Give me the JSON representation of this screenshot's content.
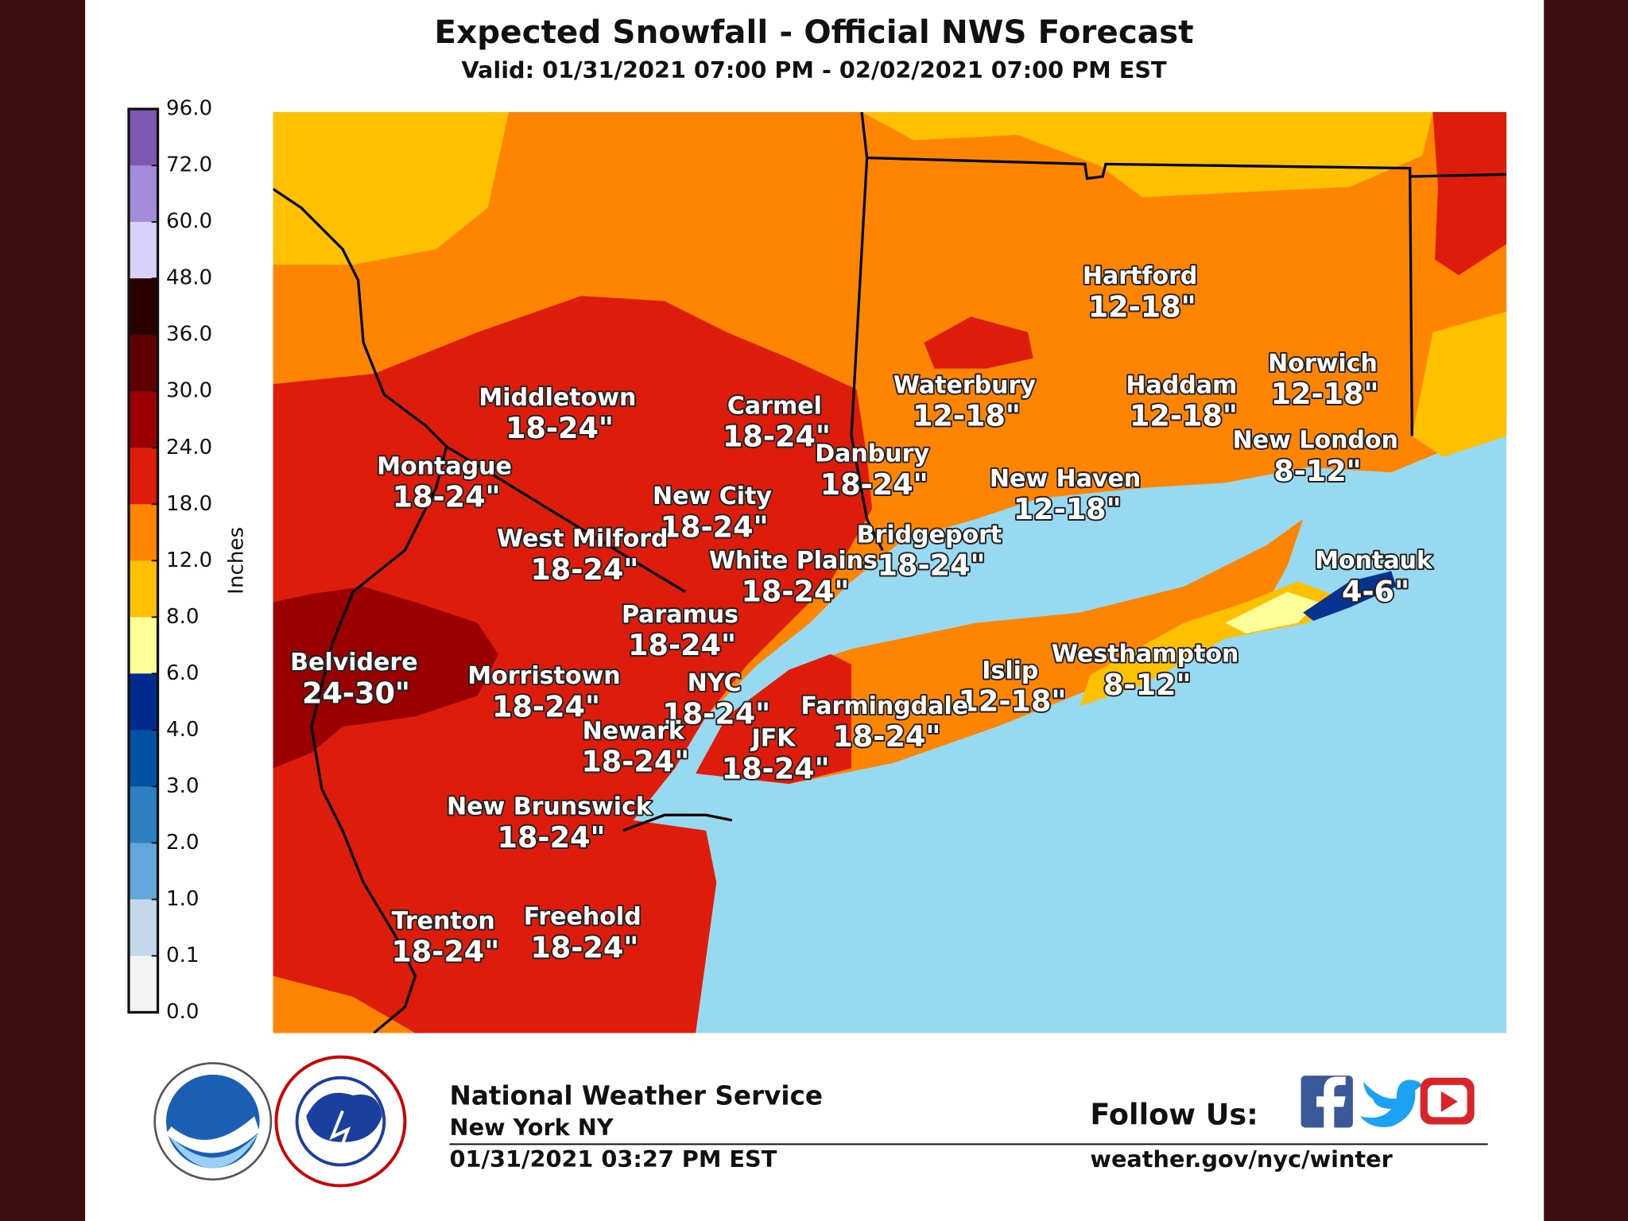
{
  "header": {
    "title": "Expected Snowfall - Official NWS Forecast",
    "subtitle": "Valid: 01/31/2021 07:00 PM - 02/02/2021 07:00 PM EST"
  },
  "colorbar": {
    "label": "Inches",
    "ticks": [
      "96.0",
      "72.0",
      "60.0",
      "48.0",
      "36.0",
      "30.0",
      "24.0",
      "18.0",
      "12.0",
      "8.0",
      "6.0",
      "4.0",
      "3.0",
      "2.0",
      "1.0",
      "0.1",
      "0.0"
    ]
  },
  "places": [
    {
      "name": "Hartford",
      "amount": "12-18\""
    },
    {
      "name": "Norwich",
      "amount": "12-18\""
    },
    {
      "name": "Middletown",
      "amount": "18-24\""
    },
    {
      "name": "Carmel",
      "amount": "18-24\""
    },
    {
      "name": "Waterbury",
      "amount": "12-18\""
    },
    {
      "name": "Haddam",
      "amount": "12-18\""
    },
    {
      "name": "New London",
      "amount": "8-12\""
    },
    {
      "name": "Danbury",
      "amount": "18-24\""
    },
    {
      "name": "Montague",
      "amount": "18-24\""
    },
    {
      "name": "New Haven",
      "amount": "12-18\""
    },
    {
      "name": "New City",
      "amount": "18-24\""
    },
    {
      "name": "West Milford",
      "amount": "18-24\""
    },
    {
      "name": "Bridgeport",
      "amount": "18-24\""
    },
    {
      "name": "White Plains",
      "amount": "18-24\""
    },
    {
      "name": "Montauk",
      "amount": "4-6\""
    },
    {
      "name": "Paramus",
      "amount": "18-24\""
    },
    {
      "name": "Belvidere",
      "amount": "24-30\""
    },
    {
      "name": "Westhampton",
      "amount": "8-12\""
    },
    {
      "name": "Islip",
      "amount": "12-18\""
    },
    {
      "name": "Morristown",
      "amount": "18-24\""
    },
    {
      "name": "NYC",
      "amount": "18-24\""
    },
    {
      "name": "Farmingdale",
      "amount": "18-24\""
    },
    {
      "name": "Newark",
      "amount": "18-24\""
    },
    {
      "name": "JFK",
      "amount": "18-24\""
    },
    {
      "name": "New Brunswick",
      "amount": "18-24\""
    },
    {
      "name": "Trenton",
      "amount": "18-24\""
    },
    {
      "name": "Freehold",
      "amount": "18-24\""
    }
  ],
  "footer": {
    "office": "National Weather Service",
    "location": "New York NY",
    "issued": "01/31/2021 03:27 PM EST",
    "follow": "Follow Us:",
    "url": "weather.gov/nyc/winter"
  }
}
